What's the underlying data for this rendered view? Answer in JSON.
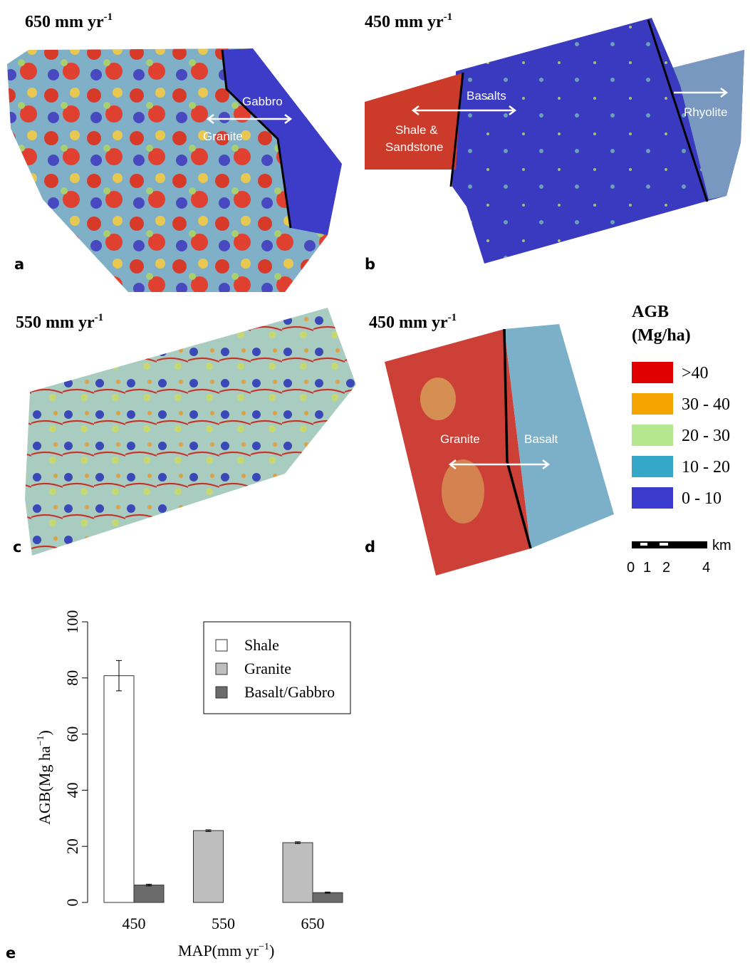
{
  "panels": [
    {
      "letter": "a",
      "title": {
        "text": "650 mm yr",
        "sup": "-1"
      },
      "labels": [
        "Gabbro",
        "Granite"
      ]
    },
    {
      "letter": "b",
      "title": {
        "text": "450 mm yr",
        "sup": "-1"
      },
      "labels": [
        "Basalts",
        "Shale &",
        "Sandstone",
        "Rhyolite"
      ]
    },
    {
      "letter": "c",
      "title": {
        "text": "550 mm yr",
        "sup": "-1"
      }
    },
    {
      "letter": "d",
      "title": {
        "text": "450 mm yr",
        "sup": "-1"
      },
      "labels": [
        "Granite",
        "Basalt"
      ]
    }
  ],
  "legend": {
    "title": [
      "AGB",
      "(Mg/ha)"
    ],
    "classes": [
      {
        "label": ">40",
        "color": "#e00000"
      },
      {
        "label": "30 - 40",
        "color": "#f5a500"
      },
      {
        "label": "20 - 30",
        "color": "#b5e690"
      },
      {
        "label": "10 - 20",
        "color": "#35a8c8"
      },
      {
        "label": "0 - 10",
        "color": "#3a3acc"
      }
    ]
  },
  "scale_bar": {
    "unit": "km",
    "ticks": [
      "0",
      "1",
      "2",
      "4"
    ]
  },
  "chart_data": {
    "type": "bar",
    "letter": "e",
    "categories": [
      "450",
      "550",
      "650"
    ],
    "series": [
      {
        "name": "Shale",
        "color": "#ffffff",
        "values": [
          80.8,
          null,
          null
        ],
        "errors": [
          5.4,
          null,
          null
        ]
      },
      {
        "name": "Granite",
        "color": "#bebebe",
        "values": [
          null,
          25.6,
          21.3
        ],
        "errors": [
          null,
          0.3,
          0.3
        ]
      },
      {
        "name": "Basalt/Gabbro",
        "color": "#6b6b6b",
        "values": [
          6.2,
          null,
          3.5
        ],
        "errors": [
          0.3,
          null,
          0.2
        ]
      }
    ],
    "ylim": [
      0,
      100
    ],
    "yticks": [
      0,
      20,
      40,
      60,
      80,
      100
    ],
    "x_label": [
      "MAP(mm yr",
      "−1",
      ")"
    ],
    "y_label": [
      "AGB(Mg ha",
      "−1",
      ")"
    ]
  }
}
